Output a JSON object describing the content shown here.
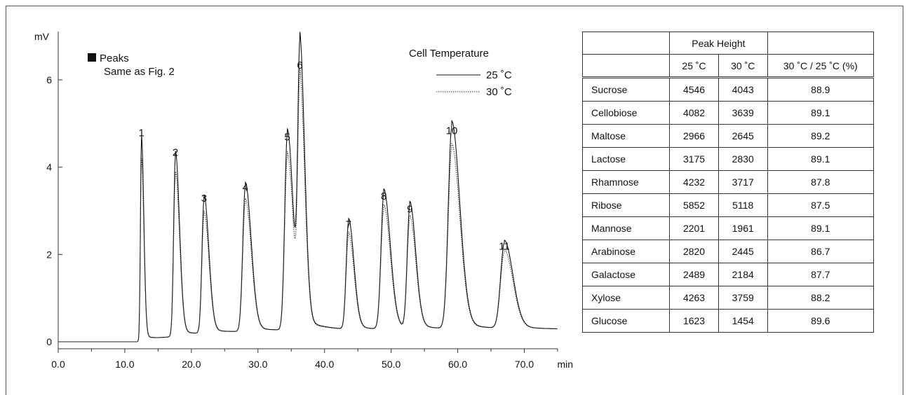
{
  "chart_data": {
    "type": "line",
    "xlabel": "min",
    "ylabel": "mV",
    "xlim": [
      0,
      75
    ],
    "ylim": [
      -0.2,
      7.0
    ],
    "x_ticks": [
      "0.0",
      "10.0",
      "20.0",
      "30.0",
      "40.0",
      "50.0",
      "60.0",
      "70.0"
    ],
    "x_tick_values": [
      0,
      10,
      20,
      30,
      40,
      50,
      60,
      70
    ],
    "y_ticks": [
      "0",
      "2",
      "4",
      "6"
    ],
    "y_tick_values": [
      0,
      2,
      4,
      6
    ],
    "grid": false,
    "legend_title": "Cell Temperature",
    "legend_position": "top-right",
    "annotation_title": "Peaks",
    "annotation_text": "Same as Fig. 2",
    "series": [
      {
        "name": "25 ˚C",
        "line_style": "solid",
        "color": "#111111"
      },
      {
        "name": "30 ˚C",
        "line_style": "dotted",
        "color": "#333333"
      }
    ],
    "peaks": [
      {
        "label": "1",
        "x": 12.5,
        "h25": 4.55,
        "h30": 4.05,
        "width": 0.22
      },
      {
        "label": "2",
        "x": 17.6,
        "h25": 4.1,
        "h30": 3.65,
        "width": 0.38
      },
      {
        "label": "3",
        "x": 21.9,
        "h25": 3.05,
        "h30": 2.7,
        "width": 0.45
      },
      {
        "label": "4",
        "x": 28.1,
        "h25": 3.3,
        "h30": 2.95,
        "width": 0.55
      },
      {
        "label": "5",
        "x": 34.4,
        "h25": 4.45,
        "h30": 3.95,
        "width": 0.55
      },
      {
        "label": "6",
        "x": 36.3,
        "h25": 6.1,
        "h30": 5.35,
        "width": 0.45
      },
      {
        "label": "7",
        "x": 43.6,
        "h25": 2.45,
        "h30": 2.15,
        "width": 0.5
      },
      {
        "label": "8",
        "x": 48.9,
        "h25": 3.1,
        "h30": 2.75,
        "width": 0.6
      },
      {
        "label": "9",
        "x": 52.8,
        "h25": 2.8,
        "h30": 2.5,
        "width": 0.55
      },
      {
        "label": "10",
        "x": 59.1,
        "h25": 4.6,
        "h30": 4.1,
        "width": 0.75
      },
      {
        "label": "11",
        "x": 67.0,
        "h25": 1.95,
        "h30": 1.75,
        "width": 0.8
      }
    ]
  },
  "table": {
    "group_header": "Peak Height",
    "col_25": "25 ˚C",
    "col_30": "30 ˚C",
    "col_ratio": "30 ˚C / 25 ˚C (%)",
    "rows": [
      {
        "name": "Sucrose",
        "v25": "4546",
        "v30": "4043",
        "ratio": "88.9"
      },
      {
        "name": "Cellobiose",
        "v25": "4082",
        "v30": "3639",
        "ratio": "89.1"
      },
      {
        "name": "Maltose",
        "v25": "2966",
        "v30": "2645",
        "ratio": "89.2"
      },
      {
        "name": "Lactose",
        "v25": "3175",
        "v30": "2830",
        "ratio": "89.1"
      },
      {
        "name": "Rhamnose",
        "v25": "4232",
        "v30": "3717",
        "ratio": "87.8"
      },
      {
        "name": "Ribose",
        "v25": "5852",
        "v30": "5118",
        "ratio": "87.5"
      },
      {
        "name": "Mannose",
        "v25": "2201",
        "v30": "1961",
        "ratio": "89.1"
      },
      {
        "name": "Arabinose",
        "v25": "2820",
        "v30": "2445",
        "ratio": "86.7"
      },
      {
        "name": "Galactose",
        "v25": "2489",
        "v30": "2184",
        "ratio": "87.7"
      },
      {
        "name": "Xylose",
        "v25": "4263",
        "v30": "3759",
        "ratio": "88.2"
      },
      {
        "name": "Glucose",
        "v25": "1623",
        "v30": "1454",
        "ratio": "89.6"
      }
    ]
  }
}
